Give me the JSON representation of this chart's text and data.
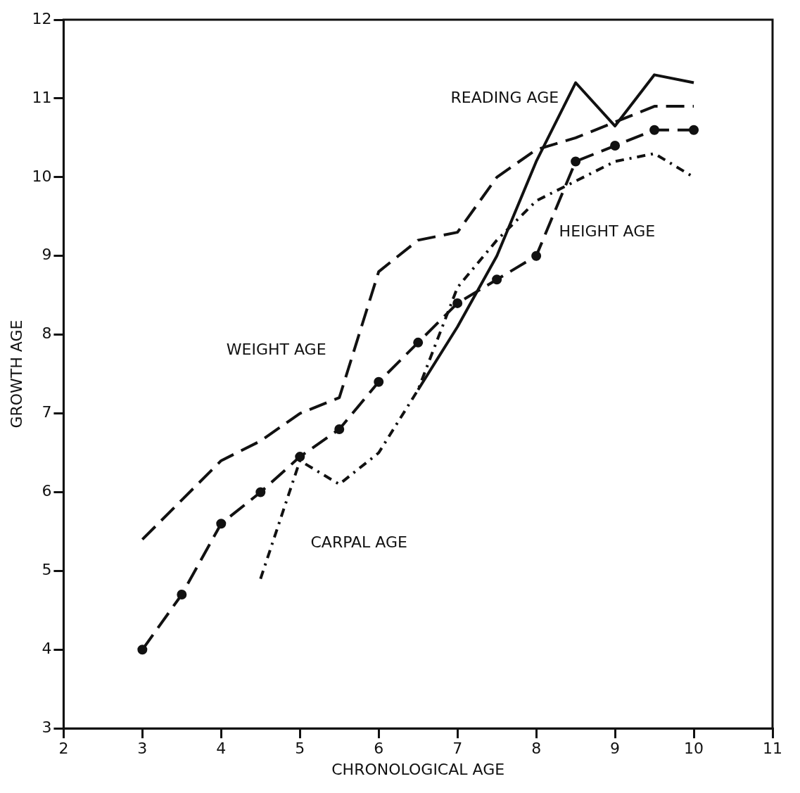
{
  "chart_data": {
    "type": "line",
    "xlabel": "CHRONOLOGICAL AGE",
    "ylabel": "GROWTH AGE",
    "xlim": [
      2,
      11
    ],
    "xticks": [
      2,
      3,
      4,
      5,
      6,
      7,
      8,
      9,
      10,
      11
    ],
    "ylim": [
      3,
      12
    ],
    "yticks": [
      3,
      4,
      5,
      6,
      7,
      8,
      9,
      10,
      11,
      12
    ],
    "grid": false,
    "legend": false,
    "series": [
      {
        "x": [
          3,
          4,
          4.5,
          5,
          5.5,
          6,
          6.5,
          7,
          7.5,
          8,
          8.5,
          9,
          9.5,
          10
        ],
        "values": [
          5.4,
          6.4,
          6.65,
          7.0,
          7.2,
          8.8,
          9.2,
          9.3,
          10.0,
          10.35,
          10.5,
          10.7,
          10.9,
          10.9
        ],
        "name": "WEIGHT AGE",
        "color": "#111111",
        "line_style": "dashed",
        "marker": "none"
      },
      {
        "x": [
          3,
          3.5,
          4,
          4.5,
          5,
          5.5,
          6,
          6.5,
          7,
          7.5,
          8,
          8.5,
          9,
          9.5,
          10
        ],
        "values": [
          4.0,
          4.7,
          5.6,
          6.0,
          6.45,
          6.8,
          7.4,
          7.9,
          8.4,
          8.7,
          9.0,
          10.2,
          10.4,
          10.6,
          10.6
        ],
        "name": "HEIGHT AGE",
        "color": "#111111",
        "line_style": "dashed",
        "marker": "circle"
      },
      {
        "x": [
          4.5,
          5,
          5.5,
          6,
          6.5,
          7,
          7.5,
          8,
          8.5,
          9,
          9.5,
          10
        ],
        "values": [
          4.9,
          6.4,
          6.1,
          6.5,
          7.3,
          8.6,
          9.2,
          9.7,
          9.95,
          10.2,
          10.3,
          10.0
        ],
        "name": "CARPAL AGE",
        "color": "#111111",
        "line_style": "dotted",
        "marker": "none"
      },
      {
        "x": [
          6.5,
          7,
          7.5,
          8,
          8.5,
          9,
          9.5,
          10
        ],
        "values": [
          7.3,
          8.1,
          9.0,
          10.2,
          11.2,
          10.65,
          11.3,
          11.2
        ],
        "name": "READING AGE",
        "color": "#111111",
        "line_style": "solid",
        "marker": "none"
      }
    ]
  }
}
